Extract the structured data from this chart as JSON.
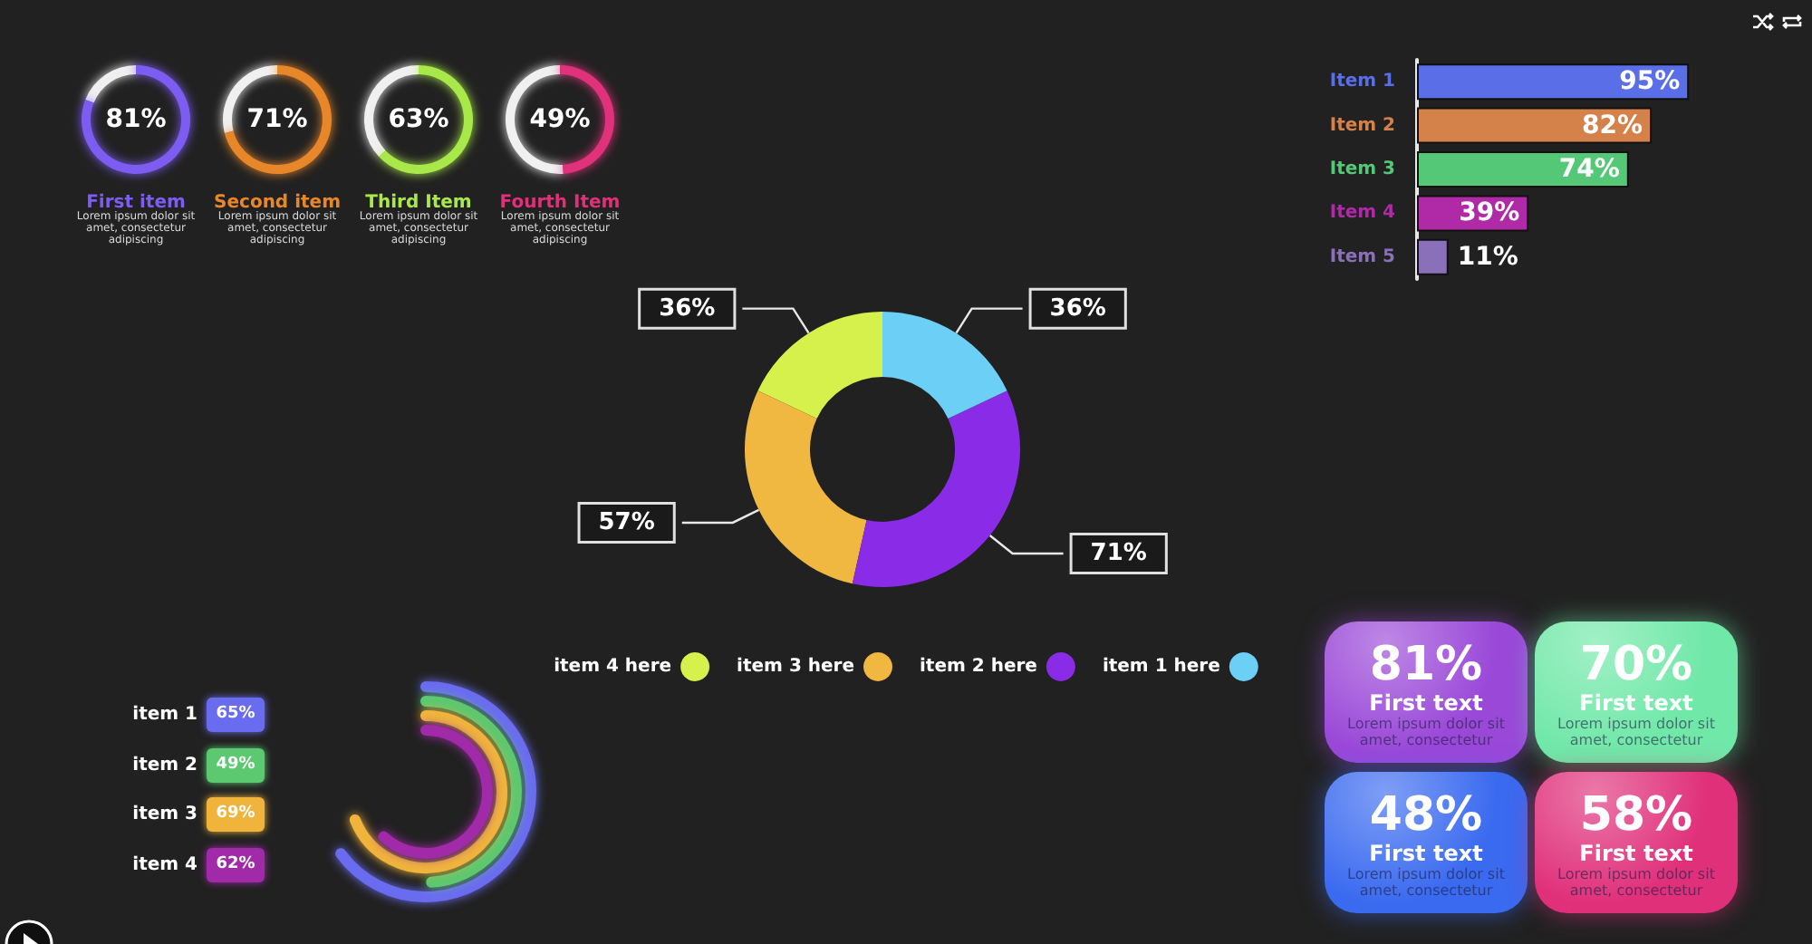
{
  "chart_data": [
    {
      "type": "donut",
      "title": "First item",
      "values": [
        19,
        81
      ],
      "colors": [
        "#f0f0f0",
        "#7d5cf2"
      ],
      "annotations": [
        "81%",
        "Lorem ipsum dolor sit\namet, consectetur\nadipiscing"
      ]
    },
    {
      "type": "donut",
      "title": "Second item",
      "values": [
        29,
        71
      ],
      "colors": [
        "#f0f0f0",
        "#e8862a"
      ],
      "annotations": [
        "71%",
        "Lorem ipsum dolor sit\namet, consectetur\nadipiscing"
      ]
    },
    {
      "type": "donut",
      "title": "Third Item",
      "values": [
        37,
        63
      ],
      "colors": [
        "#f0f0f0",
        "#a8e84a"
      ],
      "annotations": [
        "63%",
        "Lorem ipsum dolor sit\namet, consectetur\nadipiscing"
      ]
    },
    {
      "type": "donut",
      "title": "Fourth Item",
      "values": [
        51,
        49
      ],
      "colors": [
        "#f0f0f0",
        "#e0307a"
      ],
      "annotations": [
        "49%",
        "Lorem ipsum dolor sit\namet, consectetur\nadipiscing"
      ]
    },
    {
      "type": "bar",
      "orientation": "horizontal",
      "categories": [
        "Item 1",
        "Item 2",
        "Item 3",
        "Item 4",
        "Item 5"
      ],
      "values": [
        95,
        82,
        74,
        39,
        11
      ],
      "value_labels": [
        "95%",
        "82%",
        "74%",
        "39%",
        "11%"
      ],
      "colors": [
        "#5a6ee8",
        "#d4824a",
        "#55c878",
        "#b02aa8",
        "#8a70b8"
      ],
      "tick_labels": "y"
    },
    {
      "type": "donut",
      "categories": [
        "item 4 here",
        "item 3 here",
        "item 2 here",
        "item 1 here"
      ],
      "values": [
        36,
        57,
        71,
        36
      ],
      "value_labels": [
        "36%",
        "57%",
        "71%",
        "36%"
      ],
      "colors": [
        "#d6f04c",
        "#f0b840",
        "#8a2be8",
        "#6ccff6"
      ],
      "legend": "bottom"
    },
    {
      "type": "other",
      "categories": [
        "item 1",
        "item 2",
        "item 3",
        "item 4"
      ],
      "values": [
        65,
        49,
        69,
        62
      ],
      "value_labels": [
        "65%",
        "49%",
        "69%",
        "62%"
      ],
      "colors": [
        "#6a6cf0",
        "#5cc870",
        "#f0b43c",
        "#a02aa8"
      ]
    },
    {
      "type": "other",
      "colors": [
        "#9a48d8",
        "#70e8a8",
        "#3a6af0",
        "#e0307a"
      ],
      "annotations": [
        "81%\nFirst text\nLorem ipsum dolor sit\namet, consectetur",
        "70%\nFirst text\nLorem ipsum dolor sit\namet, consectetur",
        "48%\nFirst text\nLorem ipsum dolor sit\namet, consectetur",
        "58%\nFirst text\nLorem ipsum dolor sit\namet, consectetur"
      ]
    }
  ]
}
